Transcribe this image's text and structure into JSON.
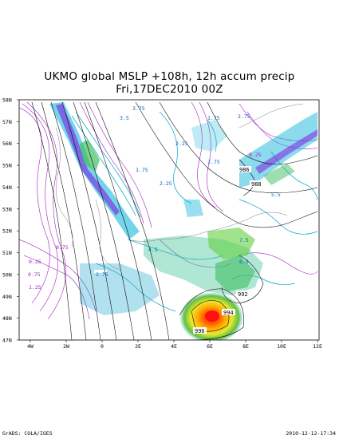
{
  "title": {
    "line1": "UKMO global MSLP +108h, 12h accum precip",
    "line2": "Fri,17DEC2010 00Z"
  },
  "footer": {
    "left": "GrADS: COLA/IGES",
    "right": "2010-12-12-17:34"
  },
  "axes": {
    "lat_labels": [
      "58N",
      "57N",
      "56N",
      "55N",
      "54N",
      "53N",
      "52N",
      "51N",
      "50N",
      "49N",
      "48N",
      "47N"
    ],
    "lon_labels": [
      "4W",
      "2W",
      "0",
      "2E",
      "4E",
      "6E",
      "8E",
      "10E",
      "12E"
    ]
  },
  "pressure_labels": [
    "986",
    "988",
    "992",
    "994",
    "996"
  ],
  "precip_labels": [
    "0.25",
    "0.75",
    "1.25",
    "1.75",
    "2.25",
    "2.75",
    "3.5",
    "3.75",
    "4.5",
    "5.5",
    "6.5",
    "7.5"
  ],
  "colors": {
    "precip_light": "#a020c0",
    "precip_mid": "#00a0c8",
    "precip_green": "#40c040",
    "precip_yellow": "#e0e020",
    "precip_orange": "#ff9000",
    "precip_red": "#e00000",
    "isobar": "#000000"
  }
}
